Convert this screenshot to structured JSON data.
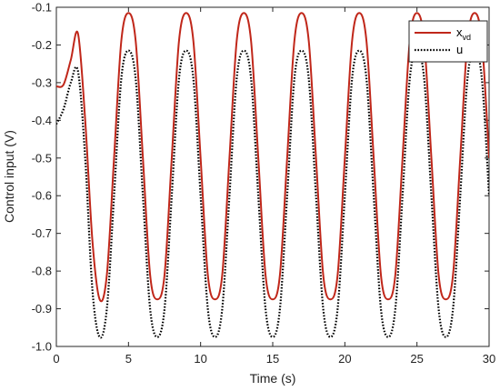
{
  "chart_data": {
    "type": "line",
    "xlabel": "Time (s)",
    "ylabel": "Control input (V)",
    "xlim": [
      0,
      30
    ],
    "ylim": [
      -1.0,
      -0.1
    ],
    "x_ticks": [
      "0",
      "5",
      "10",
      "15",
      "20",
      "25",
      "30"
    ],
    "y_ticks": [
      "-0.1",
      "-0.2",
      "-0.3",
      "-0.4",
      "-0.5",
      "-0.6",
      "-0.7",
      "-0.8",
      "-0.9",
      "-1.0"
    ],
    "legend_position": "top-right",
    "grid": false,
    "series": [
      {
        "name_main": "x",
        "name_sub": "vd",
        "color": "#c0271a",
        "style": "solid",
        "x": [
          0,
          0.5,
          1.0,
          1.5,
          2.0,
          2.5,
          3.0,
          3.5,
          4.0,
          4.5,
          5.0,
          5.5,
          6.0,
          6.5,
          7.0,
          7.5,
          8.0,
          8.5,
          9.0,
          9.5,
          10.0,
          10.5,
          11.0,
          11.5,
          12.0,
          12.5,
          13.0,
          13.5,
          14.0,
          14.5,
          15.0,
          15.5,
          16.0,
          16.5,
          17.0,
          17.5,
          18.0,
          18.5,
          19.0,
          19.5,
          20.0,
          20.5,
          21.0,
          21.5,
          22.0,
          22.5,
          23.0,
          23.5,
          24.0,
          24.5,
          25.0,
          25.5,
          26.0,
          26.5,
          27.0,
          27.5,
          28.0,
          28.5,
          29.0,
          29.5,
          30.0
        ],
        "y": [
          -0.31,
          -0.305,
          -0.24,
          -0.17,
          -0.4,
          -0.72,
          -0.875,
          -0.81,
          -0.5,
          -0.19,
          -0.115,
          -0.19,
          -0.5,
          -0.81,
          -0.875,
          -0.81,
          -0.5,
          -0.19,
          -0.115,
          -0.19,
          -0.5,
          -0.81,
          -0.875,
          -0.81,
          -0.5,
          -0.19,
          -0.115,
          -0.19,
          -0.5,
          -0.81,
          -0.875,
          -0.81,
          -0.5,
          -0.19,
          -0.115,
          -0.19,
          -0.5,
          -0.81,
          -0.875,
          -0.81,
          -0.5,
          -0.19,
          -0.115,
          -0.19,
          -0.5,
          -0.81,
          -0.875,
          -0.81,
          -0.5,
          -0.19,
          -0.115,
          -0.19,
          -0.5,
          -0.81,
          -0.875,
          -0.81,
          -0.5,
          -0.19,
          -0.115,
          -0.19,
          -0.5
        ]
      },
      {
        "name_main": "u",
        "name_sub": "",
        "color": "#000000",
        "style": "dotted",
        "x": [
          0,
          0.5,
          1.0,
          1.5,
          2.0,
          2.5,
          3.0,
          3.5,
          4.0,
          4.5,
          5.0,
          5.5,
          6.0,
          6.5,
          7.0,
          7.5,
          8.0,
          8.5,
          9.0,
          9.5,
          10.0,
          10.5,
          11.0,
          11.5,
          12.0,
          12.5,
          13.0,
          13.5,
          14.0,
          14.5,
          15.0,
          15.5,
          16.0,
          16.5,
          17.0,
          17.5,
          18.0,
          18.5,
          19.0,
          19.5,
          20.0,
          20.5,
          21.0,
          21.5,
          22.0,
          22.5,
          23.0,
          23.5,
          24.0,
          24.5,
          25.0,
          25.5,
          26.0,
          26.5,
          27.0,
          27.5,
          28.0,
          28.5,
          29.0,
          29.5,
          30.0
        ],
        "y": [
          -0.41,
          -0.37,
          -0.3,
          -0.27,
          -0.5,
          -0.85,
          -0.975,
          -0.9,
          -0.6,
          -0.29,
          -0.215,
          -0.29,
          -0.6,
          -0.9,
          -0.975,
          -0.9,
          -0.6,
          -0.29,
          -0.215,
          -0.29,
          -0.6,
          -0.9,
          -0.975,
          -0.9,
          -0.6,
          -0.29,
          -0.215,
          -0.29,
          -0.6,
          -0.9,
          -0.975,
          -0.9,
          -0.6,
          -0.29,
          -0.215,
          -0.29,
          -0.6,
          -0.9,
          -0.975,
          -0.9,
          -0.6,
          -0.29,
          -0.215,
          -0.29,
          -0.6,
          -0.9,
          -0.975,
          -0.9,
          -0.6,
          -0.29,
          -0.215,
          -0.29,
          -0.6,
          -0.9,
          -0.975,
          -0.9,
          -0.6,
          -0.29,
          -0.215,
          -0.29,
          -0.6
        ]
      }
    ]
  }
}
